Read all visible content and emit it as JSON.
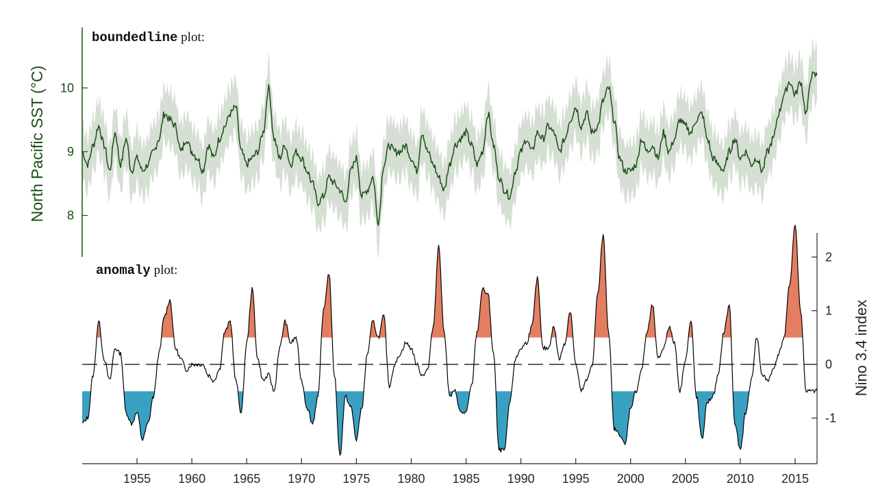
{
  "chart_data": [
    {
      "type": "line",
      "panel": "top",
      "title_code": "boundedline",
      "title_rest": " plot:",
      "ylabel": "North Pacific SST (°C)",
      "yticks": [
        8,
        9,
        10
      ],
      "ylim": [
        7.35,
        10.95
      ],
      "xlim": [
        1950,
        2017
      ],
      "shaded_band": "uncertainty bounds around mean",
      "colors": {
        "line": "#1a4d14",
        "band": "#d5dfd3",
        "axis": "#1a4d14"
      },
      "series": [
        {
          "x": [
            1950.0,
            1950.5,
            1951.0,
            1951.5,
            1952.0,
            1952.5,
            1953.0,
            1953.5,
            1954.0,
            1954.5,
            1955.0,
            1955.5,
            1956.0,
            1956.5,
            1957.0,
            1957.5,
            1958.0,
            1958.5,
            1959.0,
            1959.5,
            1960.0,
            1960.5,
            1961.0,
            1961.5,
            1962.0,
            1962.5,
            1963.0,
            1963.5,
            1964.0,
            1964.5,
            1965.0,
            1965.5,
            1966.0,
            1966.5,
            1967.0,
            1967.5,
            1968.0,
            1968.5,
            1969.0,
            1969.5,
            1970.0,
            1970.5,
            1971.0,
            1971.5,
            1972.0,
            1972.5,
            1973.0,
            1973.5,
            1974.0,
            1974.5,
            1975.0,
            1975.5,
            1976.0,
            1976.5,
            1977.0,
            1977.5,
            1978.0,
            1978.5,
            1979.0,
            1979.5,
            1980.0,
            1980.5,
            1981.0,
            1981.5,
            1982.0,
            1982.5,
            1983.0,
            1983.5,
            1984.0,
            1984.5,
            1985.0,
            1985.5,
            1986.0,
            1986.5,
            1987.0,
            1987.5,
            1988.0,
            1988.5,
            1989.0,
            1989.5,
            1990.0,
            1990.5,
            1991.0,
            1991.5,
            1992.0,
            1992.5,
            1993.0,
            1993.5,
            1994.0,
            1994.5,
            1995.0,
            1995.5,
            1996.0,
            1996.5,
            1997.0,
            1997.5,
            1998.0,
            1998.5,
            1999.0,
            1999.5,
            2000.0,
            2000.5,
            2001.0,
            2001.5,
            2002.0,
            2002.5,
            2003.0,
            2003.5,
            2004.0,
            2004.5,
            2005.0,
            2005.5,
            2006.0,
            2006.5,
            2007.0,
            2007.5,
            2008.0,
            2008.5,
            2009.0,
            2009.5,
            2010.0,
            2010.5,
            2011.0,
            2011.5,
            2012.0,
            2012.5,
            2013.0,
            2013.5,
            2014.0,
            2014.5,
            2015.0,
            2015.5,
            2016.0,
            2016.5,
            2017.0
          ],
          "y": [
            9.0,
            8.8,
            9.1,
            9.4,
            9.1,
            8.7,
            9.3,
            8.8,
            9.2,
            8.7,
            8.9,
            8.7,
            8.8,
            9.0,
            9.2,
            9.6,
            9.5,
            9.4,
            9.0,
            9.2,
            9.0,
            8.9,
            8.7,
            9.1,
            8.9,
            9.2,
            9.4,
            9.6,
            9.7,
            9.0,
            8.8,
            8.9,
            9.0,
            9.3,
            10.0,
            9.2,
            8.9,
            9.1,
            8.8,
            9.0,
            8.9,
            8.7,
            8.5,
            8.2,
            8.3,
            8.6,
            8.5,
            8.4,
            8.2,
            8.7,
            8.9,
            8.3,
            8.4,
            8.6,
            7.9,
            8.8,
            9.1,
            9.0,
            9.0,
            9.1,
            8.9,
            8.7,
            9.3,
            9.0,
            8.8,
            8.6,
            8.4,
            8.8,
            9.1,
            9.2,
            9.3,
            9.1,
            8.8,
            9.0,
            9.6,
            9.1,
            8.6,
            8.4,
            8.3,
            8.7,
            9.0,
            9.2,
            9.0,
            9.3,
            9.2,
            9.4,
            9.3,
            9.0,
            9.2,
            9.5,
            9.7,
            9.4,
            9.6,
            9.3,
            9.4,
            9.8,
            10.0,
            9.5,
            8.9,
            8.7,
            8.7,
            8.8,
            9.2,
            9.0,
            9.1,
            8.9,
            9.3,
            9.0,
            9.2,
            9.5,
            9.4,
            9.3,
            9.5,
            9.6,
            9.2,
            8.9,
            8.8,
            8.7,
            9.0,
            9.2,
            8.9,
            9.0,
            8.8,
            8.9,
            8.7,
            9.0,
            9.2,
            9.6,
            9.9,
            10.1,
            9.9,
            10.1,
            9.6,
            10.2,
            10.2
          ]
        }
      ]
    },
    {
      "type": "area",
      "panel": "bottom",
      "title_code": "anomaly",
      "title_rest": " plot:",
      "ylabel": "Nino 3.4 index",
      "yticks": [
        -1,
        0,
        1,
        2
      ],
      "ylim": [
        -1.85,
        2.45
      ],
      "xlim": [
        1950,
        2017
      ],
      "xticks": [
        1955,
        1960,
        1965,
        1970,
        1975,
        1980,
        1985,
        1990,
        1995,
        2000,
        2005,
        2010,
        2015
      ],
      "thresholds": {
        "upper": 0.5,
        "lower": -0.5,
        "reference": 0
      },
      "colors": {
        "positive_fill": "#e47e61",
        "negative_fill": "#3aa0c1",
        "line": "#000000"
      },
      "series": [
        {
          "x": [
            1950.0,
            1950.5,
            1951.0,
            1951.5,
            1952.0,
            1952.5,
            1953.0,
            1953.5,
            1954.0,
            1954.5,
            1955.0,
            1955.5,
            1956.0,
            1956.5,
            1957.0,
            1957.5,
            1958.0,
            1958.5,
            1959.0,
            1959.5,
            1960.0,
            1960.5,
            1961.0,
            1961.5,
            1962.0,
            1962.5,
            1963.0,
            1963.5,
            1964.0,
            1964.5,
            1965.0,
            1965.5,
            1966.0,
            1966.5,
            1967.0,
            1967.5,
            1968.0,
            1968.5,
            1969.0,
            1969.5,
            1970.0,
            1970.5,
            1971.0,
            1971.5,
            1972.0,
            1972.5,
            1973.0,
            1973.5,
            1974.0,
            1974.5,
            1975.0,
            1975.5,
            1976.0,
            1976.5,
            1977.0,
            1977.5,
            1978.0,
            1978.5,
            1979.0,
            1979.5,
            1980.0,
            1980.5,
            1981.0,
            1981.5,
            1982.0,
            1982.5,
            1983.0,
            1983.5,
            1984.0,
            1984.5,
            1985.0,
            1985.5,
            1986.0,
            1986.5,
            1987.0,
            1987.5,
            1988.0,
            1988.5,
            1989.0,
            1989.5,
            1990.0,
            1990.5,
            1991.0,
            1991.5,
            1992.0,
            1992.5,
            1993.0,
            1993.5,
            1994.0,
            1994.5,
            1995.0,
            1995.5,
            1996.0,
            1996.5,
            1997.0,
            1997.5,
            1998.0,
            1998.5,
            1999.0,
            1999.5,
            2000.0,
            2000.5,
            2001.0,
            2001.5,
            2002.0,
            2002.5,
            2003.0,
            2003.5,
            2004.0,
            2004.5,
            2005.0,
            2005.5,
            2006.0,
            2006.5,
            2007.0,
            2007.5,
            2008.0,
            2008.5,
            2009.0,
            2009.5,
            2010.0,
            2010.5,
            2011.0,
            2011.5,
            2012.0,
            2012.5,
            2013.0,
            2013.5,
            2014.0,
            2014.5,
            2015.0,
            2015.5,
            2016.0,
            2016.5,
            2017.0
          ],
          "y": [
            -1.1,
            -1.0,
            -0.2,
            0.8,
            0.1,
            -0.3,
            0.3,
            0.2,
            -0.9,
            -1.1,
            -0.9,
            -1.4,
            -1.1,
            -0.6,
            0.2,
            0.9,
            1.2,
            0.3,
            0.1,
            -0.1,
            0.0,
            0.0,
            0.0,
            -0.2,
            -0.3,
            -0.1,
            0.6,
            0.8,
            -0.3,
            -0.9,
            0.4,
            1.4,
            0.1,
            -0.3,
            -0.2,
            -0.5,
            0.3,
            0.8,
            0.4,
            0.5,
            -0.3,
            -0.8,
            -1.1,
            -0.6,
            1.0,
            1.7,
            -0.2,
            -1.7,
            -0.6,
            -0.8,
            -1.4,
            -0.8,
            0.2,
            0.8,
            0.5,
            0.9,
            -0.4,
            0.0,
            0.2,
            0.4,
            0.3,
            0.0,
            -0.2,
            -0.1,
            0.7,
            2.2,
            0.6,
            -0.6,
            -0.5,
            -0.9,
            -0.9,
            -0.4,
            0.6,
            1.4,
            1.3,
            0.2,
            -1.6,
            -1.6,
            -0.7,
            0.1,
            0.3,
            0.4,
            0.7,
            1.6,
            0.3,
            0.3,
            0.7,
            0.1,
            0.4,
            1.0,
            0.0,
            -0.5,
            -0.3,
            0.0,
            1.3,
            2.4,
            0.6,
            -1.2,
            -1.3,
            -1.5,
            -0.8,
            -0.5,
            -0.1,
            0.6,
            1.1,
            0.1,
            0.3,
            0.7,
            0.4,
            -0.5,
            0.1,
            0.8,
            -0.6,
            -1.4,
            -0.7,
            -0.6,
            -0.2,
            0.6,
            1.1,
            -1.1,
            -1.6,
            -0.9,
            -0.3,
            0.5,
            -0.2,
            -0.3,
            -0.1,
            0.2,
            0.5,
            1.5,
            2.6,
            1.0,
            -0.5,
            -0.5,
            -0.5
          ]
        }
      ]
    }
  ]
}
